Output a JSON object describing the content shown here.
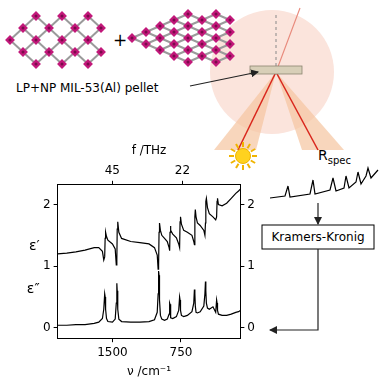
{
  "labels": {
    "plus": "+",
    "pellet": "LP+NP MIL-53(Al) pellet",
    "reflectance": {
      "text": "R",
      "subscript": "spec"
    },
    "method": "Kramers-Kronig"
  },
  "chart_data": {
    "type": "line",
    "xlabel": "ν /cm⁻¹",
    "x2label": "f /THz",
    "xlim": [
      2100,
      100
    ],
    "xticks": [
      1500,
      750
    ],
    "x2ticks": [
      {
        "value": 1501,
        "label": "45"
      },
      {
        "value": 734,
        "label": "22"
      }
    ],
    "ylim": [
      -0.17,
      2.32
    ],
    "yticks": [
      0,
      1,
      2
    ],
    "y2lim": [
      -0.17,
      2.32
    ],
    "y2ticks": [
      0,
      1,
      2
    ],
    "grid": false,
    "x": [
      2100,
      2000,
      1900,
      1800,
      1700,
      1650,
      1610,
      1595,
      1585,
      1580,
      1575,
      1565,
      1550,
      1500,
      1470,
      1458,
      1452,
      1448,
      1442,
      1430,
      1400,
      1300,
      1200,
      1100,
      1040,
      1010,
      1000,
      995,
      990,
      985,
      975,
      960,
      930,
      900,
      880,
      874,
      870,
      866,
      860,
      840,
      800,
      775,
      765,
      760,
      755,
      745,
      720,
      680,
      630,
      610,
      603,
      598,
      593,
      585,
      570,
      540,
      500,
      488,
      482,
      478,
      472,
      460,
      440,
      400,
      370,
      360,
      355,
      350,
      340,
      300,
      250,
      200,
      150,
      120,
      100
    ],
    "series": [
      {
        "name": "ε′",
        "color": "#000000",
        "values": [
          1.2,
          1.21,
          1.23,
          1.26,
          1.3,
          1.3,
          1.24,
          1.1,
          1.15,
          1.45,
          1.55,
          1.48,
          1.42,
          1.36,
          1.28,
          1.02,
          1.1,
          1.6,
          1.72,
          1.55,
          1.45,
          1.4,
          1.38,
          1.36,
          1.3,
          1.18,
          0.95,
          1.0,
          1.55,
          1.7,
          1.58,
          1.5,
          1.45,
          1.4,
          1.3,
          1.25,
          1.55,
          1.65,
          1.58,
          1.52,
          1.46,
          1.36,
          1.3,
          1.72,
          1.8,
          1.68,
          1.58,
          1.55,
          1.5,
          1.4,
          1.35,
          1.8,
          1.92,
          1.8,
          1.7,
          1.66,
          1.58,
          1.5,
          1.7,
          2.05,
          2.1,
          1.95,
          1.85,
          1.8,
          1.75,
          1.8,
          2.05,
          2.1,
          2.0,
          1.98,
          2.02,
          2.1,
          2.18,
          2.22,
          2.25
        ]
      },
      {
        "name": "ε″",
        "color": "#000000",
        "values": [
          0.04,
          0.04,
          0.05,
          0.05,
          0.07,
          0.09,
          0.15,
          0.3,
          0.55,
          0.5,
          0.3,
          0.15,
          0.1,
          0.09,
          0.14,
          0.4,
          0.72,
          0.6,
          0.3,
          0.14,
          0.1,
          0.09,
          0.09,
          0.1,
          0.13,
          0.25,
          0.55,
          0.92,
          0.85,
          0.45,
          0.2,
          0.14,
          0.12,
          0.14,
          0.22,
          0.4,
          0.38,
          0.22,
          0.16,
          0.15,
          0.18,
          0.28,
          0.5,
          0.45,
          0.28,
          0.2,
          0.18,
          0.2,
          0.26,
          0.4,
          0.62,
          0.55,
          0.35,
          0.25,
          0.24,
          0.26,
          0.35,
          0.55,
          0.75,
          0.6,
          0.4,
          0.32,
          0.3,
          0.34,
          0.25,
          0.45,
          0.4,
          0.28,
          0.22,
          0.2,
          0.2,
          0.22,
          0.25,
          0.26,
          0.28
        ]
      }
    ]
  }
}
